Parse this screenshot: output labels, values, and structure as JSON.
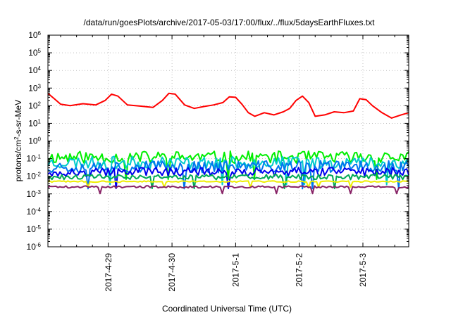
{
  "chart_data": {
    "type": "line",
    "title": "/data/run/goesPlots/archive/2017-05-03/17:00/flux/../flux/5daysEarthFluxes.txt",
    "xlabel": "Coordinated Universal Time (UTC)",
    "ylabel": {
      "base": "protons/cm",
      "sup": "2",
      "rest": "-s-sr-MeV"
    },
    "y_scale": "log",
    "ylim_exp": [
      -6,
      6
    ],
    "y_ticks": [
      {
        "exp": -6,
        "label_base": "10",
        "label_sup": "-6"
      },
      {
        "exp": -5,
        "label_base": "10",
        "label_sup": "-5"
      },
      {
        "exp": -4,
        "label_base": "10",
        "label_sup": "-4"
      },
      {
        "exp": -3,
        "label_base": "10",
        "label_sup": "-3"
      },
      {
        "exp": -2,
        "label_base": "10",
        "label_sup": "-2"
      },
      {
        "exp": -1,
        "label_base": "10",
        "label_sup": "-1"
      },
      {
        "exp": 0,
        "label_base": "10",
        "label_sup": "0"
      },
      {
        "exp": 1,
        "label_base": "10",
        "label_sup": "1"
      },
      {
        "exp": 2,
        "label_base": "10",
        "label_sup": "2"
      },
      {
        "exp": 3,
        "label_base": "10",
        "label_sup": "3"
      },
      {
        "exp": 4,
        "label_base": "10",
        "label_sup": "4"
      },
      {
        "exp": 5,
        "label_base": "10",
        "label_sup": "5"
      },
      {
        "exp": 6,
        "label_base": "10",
        "label_sup": "6"
      }
    ],
    "x_domain_days": [
      -0.95,
      4.72
    ],
    "x_ticks": [
      {
        "day": 0,
        "label": "2017-4-29"
      },
      {
        "day": 1,
        "label": "2017-4-30"
      },
      {
        "day": 2,
        "label": "2017-5-1"
      },
      {
        "day": 3,
        "label": "2017-5-2"
      },
      {
        "day": 4,
        "label": "2017-5-3"
      }
    ],
    "grid": true,
    "series": [
      {
        "color": "#ff0000",
        "width": 2,
        "points": [
          [
            -0.95,
            500
          ],
          [
            -0.85,
            250
          ],
          [
            -0.75,
            120
          ],
          [
            -0.6,
            100
          ],
          [
            -0.4,
            130
          ],
          [
            -0.2,
            110
          ],
          [
            -0.05,
            200
          ],
          [
            0.05,
            450
          ],
          [
            0.15,
            350
          ],
          [
            0.3,
            110
          ],
          [
            0.5,
            95
          ],
          [
            0.7,
            80
          ],
          [
            0.85,
            200
          ],
          [
            0.95,
            500
          ],
          [
            1.05,
            450
          ],
          [
            1.2,
            110
          ],
          [
            1.35,
            70
          ],
          [
            1.5,
            90
          ],
          [
            1.65,
            110
          ],
          [
            1.8,
            150
          ],
          [
            1.9,
            320
          ],
          [
            2.0,
            300
          ],
          [
            2.1,
            120
          ],
          [
            2.2,
            40
          ],
          [
            2.3,
            25
          ],
          [
            2.45,
            40
          ],
          [
            2.6,
            30
          ],
          [
            2.75,
            45
          ],
          [
            2.85,
            70
          ],
          [
            2.95,
            200
          ],
          [
            3.05,
            350
          ],
          [
            3.15,
            150
          ],
          [
            3.25,
            25
          ],
          [
            3.4,
            30
          ],
          [
            3.55,
            45
          ],
          [
            3.7,
            40
          ],
          [
            3.85,
            50
          ],
          [
            3.95,
            250
          ],
          [
            4.05,
            220
          ],
          [
            4.15,
            100
          ],
          [
            4.3,
            40
          ],
          [
            4.45,
            20
          ],
          [
            4.6,
            30
          ],
          [
            4.72,
            40
          ]
        ]
      },
      {
        "color": "#00ee00",
        "width": 2,
        "base": 0.12,
        "amp": 0.35,
        "seed": 11
      },
      {
        "color": "#00cccc",
        "width": 2,
        "base": 0.06,
        "amp": 0.35,
        "seed": 23
      },
      {
        "color": "#0077ee",
        "width": 2,
        "base": 0.035,
        "amp": 0.35,
        "seed": 37
      },
      {
        "color": "#0000ee",
        "width": 2,
        "base": 0.018,
        "amp": 0.25,
        "seed": 49
      },
      {
        "color": "#00aa55",
        "width": 2,
        "base": 0.009,
        "amp": 0.15,
        "seed": 61
      },
      {
        "color": "#eeee00",
        "width": 2,
        "base": 0.005,
        "amp": 0.04,
        "seed": 73
      },
      {
        "color": "#882266",
        "width": 2,
        "base": 0.0025,
        "amp": 0.06,
        "seed": 89
      }
    ]
  }
}
